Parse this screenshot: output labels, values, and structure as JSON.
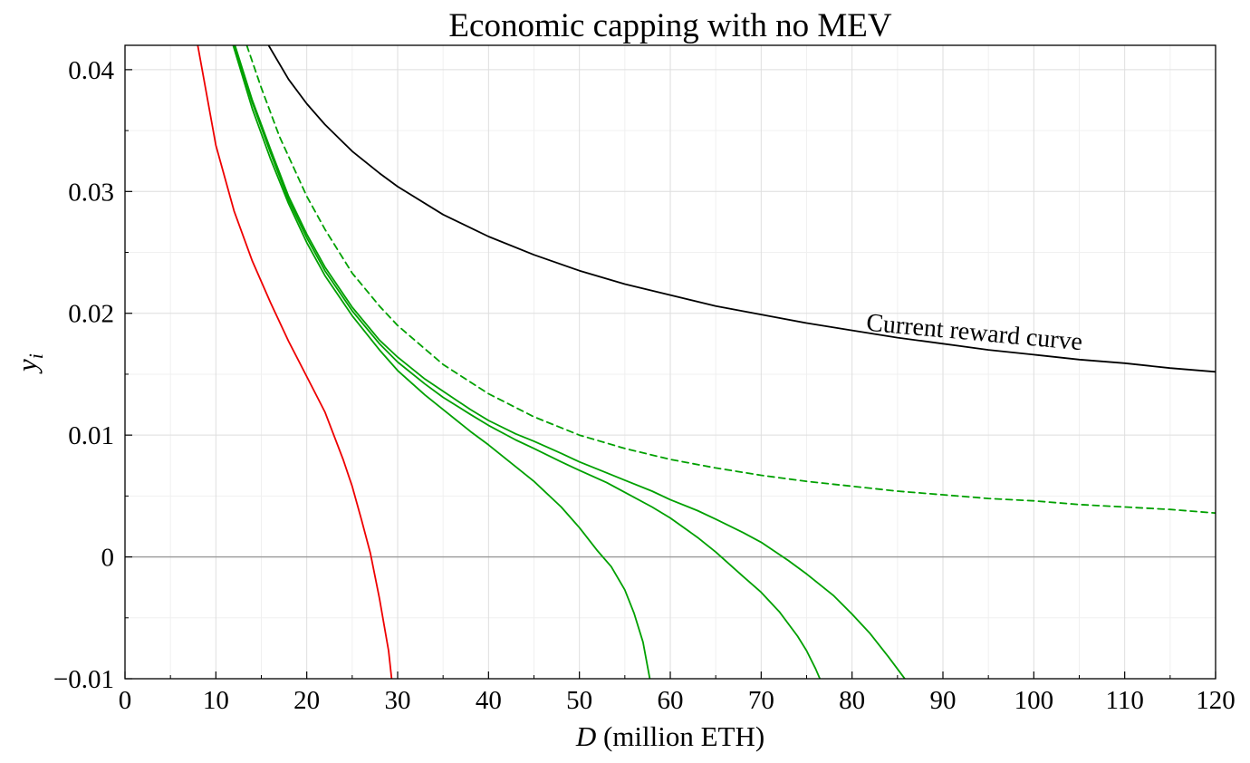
{
  "chart_data": {
    "type": "line",
    "title": "Economic capping with no MEV",
    "xlabel": "D (million ETH)",
    "xlabel_var": "D",
    "xlabel_rest": " (million ETH)",
    "ylabel": "y_i",
    "ylabel_var": "y",
    "ylabel_sub": "i",
    "xlim": [
      0,
      120
    ],
    "ylim": [
      -0.01,
      0.042
    ],
    "xticks": [
      0,
      10,
      20,
      30,
      40,
      50,
      60,
      70,
      80,
      90,
      100,
      110,
      120
    ],
    "xtick_labels": [
      "0",
      "10",
      "20",
      "30",
      "40",
      "50",
      "60",
      "70",
      "80",
      "90",
      "100",
      "110",
      "120"
    ],
    "yticks": [
      -0.01,
      0,
      0.01,
      0.02,
      0.03,
      0.04
    ],
    "ytick_labels": [
      "−0.01",
      "0",
      "0.01",
      "0.02",
      "0.03",
      "0.04"
    ],
    "grid": true,
    "zero_line": true,
    "annotation": {
      "text": "Current reward curve",
      "x": 81.5,
      "y": 0.0186
    },
    "series": [
      {
        "color": "#000000",
        "style": "solid",
        "x": [
          15.8,
          18,
          20,
          22,
          25,
          28,
          30,
          35,
          40,
          45,
          50,
          55,
          60,
          65,
          70,
          75,
          80,
          85,
          90,
          95,
          100,
          105,
          110,
          115,
          120
        ],
        "y": [
          0.042,
          0.0392,
          0.0372,
          0.0355,
          0.0333,
          0.0315,
          0.0304,
          0.0281,
          0.0263,
          0.0248,
          0.0235,
          0.0224,
          0.0215,
          0.0206,
          0.0199,
          0.0192,
          0.0186,
          0.018,
          0.0175,
          0.017,
          0.0166,
          0.0162,
          0.0159,
          0.0155,
          0.0152
        ]
      },
      {
        "color": "#00a000",
        "style": "dashed",
        "x": [
          13.4,
          15,
          17,
          20,
          22,
          25,
          28,
          30,
          35,
          40,
          45,
          50,
          55,
          60,
          65,
          70,
          75,
          80,
          85,
          90,
          95,
          100,
          105,
          110,
          115,
          120
        ],
        "y": [
          0.042,
          0.0385,
          0.0345,
          0.0296,
          0.0269,
          0.0233,
          0.0206,
          0.019,
          0.0158,
          0.0134,
          0.0115,
          0.01,
          0.0089,
          0.008,
          0.0073,
          0.0067,
          0.0062,
          0.0058,
          0.0054,
          0.0051,
          0.0048,
          0.0046,
          0.0043,
          0.0041,
          0.0039,
          0.0036
        ]
      },
      {
        "color": "#00a000",
        "style": "solid",
        "x": [
          12.1,
          14,
          16,
          18,
          20,
          22,
          25,
          28,
          30,
          33,
          35,
          38,
          40,
          43,
          45,
          48,
          50,
          53,
          55,
          58,
          60,
          63,
          65,
          68,
          70,
          73,
          75,
          78,
          80,
          82,
          84,
          85,
          86,
          87.2
        ],
        "y": [
          0.042,
          0.0375,
          0.0335,
          0.0296,
          0.0265,
          0.0238,
          0.0205,
          0.0178,
          0.0164,
          0.0146,
          0.0136,
          0.0121,
          0.0112,
          0.0101,
          0.0095,
          0.0085,
          0.0078,
          0.0069,
          0.0063,
          0.0054,
          0.0047,
          0.0038,
          0.0031,
          0.002,
          0.0012,
          -0.0003,
          -0.0014,
          -0.0032,
          -0.0047,
          -0.0063,
          -0.0082,
          -0.0092,
          -0.0102,
          -0.0118
        ]
      },
      {
        "color": "#00a000",
        "style": "solid",
        "x": [
          12.0,
          14,
          16,
          18,
          20,
          22,
          25,
          28,
          30,
          33,
          35,
          38,
          40,
          43,
          45,
          48,
          50,
          53,
          55,
          58,
          60,
          63,
          65,
          68,
          70,
          72,
          74,
          75,
          76,
          77.5
        ],
        "y": [
          0.042,
          0.0373,
          0.0332,
          0.0293,
          0.0262,
          0.0235,
          0.0202,
          0.0175,
          0.016,
          0.0142,
          0.0131,
          0.0117,
          0.0108,
          0.0096,
          0.0089,
          0.0078,
          0.0071,
          0.0061,
          0.0053,
          0.0041,
          0.0032,
          0.0016,
          0.0004,
          -0.0016,
          -0.0029,
          -0.0045,
          -0.0065,
          -0.0077,
          -0.0092,
          -0.0118
        ]
      },
      {
        "color": "#00a000",
        "style": "solid",
        "x": [
          11.9,
          14,
          16,
          18,
          20,
          22,
          25,
          28,
          30,
          33,
          35,
          38,
          40,
          43,
          45,
          48,
          50,
          52,
          53.5,
          55,
          56,
          57,
          58.2
        ],
        "y": [
          0.042,
          0.0368,
          0.0327,
          0.029,
          0.0258,
          0.0231,
          0.0198,
          0.017,
          0.0153,
          0.0133,
          0.0121,
          0.0103,
          0.0092,
          0.0074,
          0.0062,
          0.0041,
          0.0024,
          0.0005,
          -0.0008,
          -0.0027,
          -0.0046,
          -0.007,
          -0.0118
        ]
      },
      {
        "color": "#ee0000",
        "style": "solid",
        "x": [
          8.0,
          10,
          12,
          14,
          16,
          18,
          20,
          22,
          24,
          25,
          26,
          27,
          28,
          29,
          29.6
        ],
        "y": [
          0.042,
          0.0338,
          0.0284,
          0.0243,
          0.0209,
          0.0177,
          0.0148,
          0.0119,
          0.008,
          0.0058,
          0.0031,
          0.0003,
          -0.0034,
          -0.0077,
          -0.0118
        ]
      }
    ]
  }
}
